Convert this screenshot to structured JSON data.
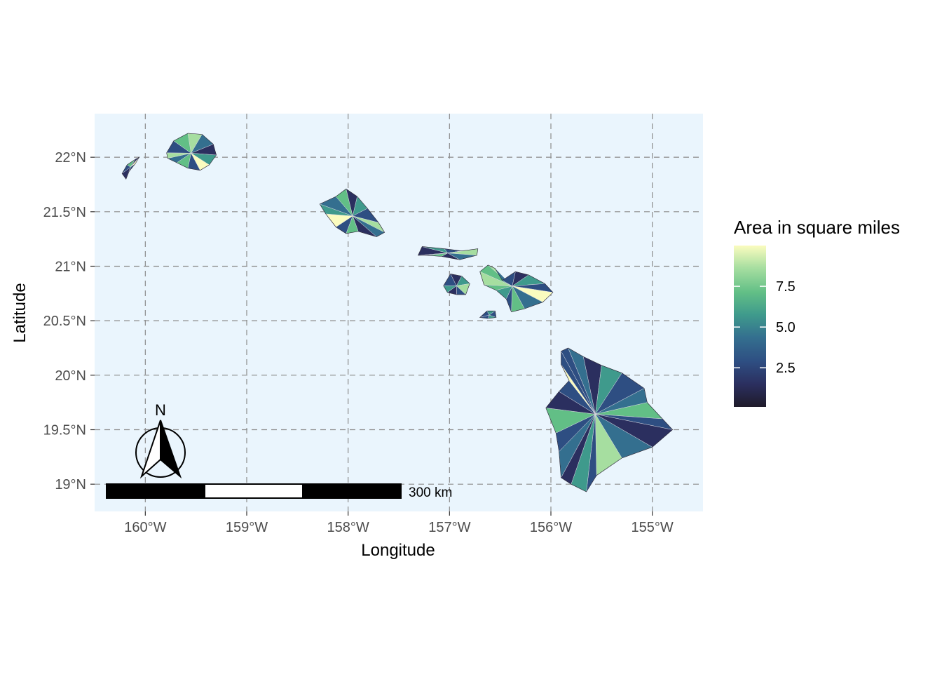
{
  "map": {
    "xlabel": "Longitude",
    "ylabel": "Latitude",
    "xlim": [
      -160.5,
      -154.5
    ],
    "ylim": [
      18.75,
      22.4
    ],
    "x_ticks": [
      {
        "value": -160,
        "label": "160°W"
      },
      {
        "value": -159,
        "label": "159°W"
      },
      {
        "value": -158,
        "label": "158°W"
      },
      {
        "value": -157,
        "label": "157°W"
      },
      {
        "value": -156,
        "label": "156°W"
      },
      {
        "value": -155,
        "label": "155°W"
      }
    ],
    "y_ticks": [
      {
        "value": 22,
        "label": "22°N"
      },
      {
        "value": 21.5,
        "label": "21.5°N"
      },
      {
        "value": 21,
        "label": "21°N"
      },
      {
        "value": 20.5,
        "label": "20.5°N"
      },
      {
        "value": 20,
        "label": "20°N"
      },
      {
        "value": 19.5,
        "label": "19.5°N"
      },
      {
        "value": 19,
        "label": "19°N"
      }
    ],
    "grid": "dashed",
    "colors": {
      "panel": "#eaf5fd",
      "grid": "#8c8c8c",
      "palette": [
        "#1f1b2a",
        "#2b2f5f",
        "#2e4e82",
        "#346f8f",
        "#3f9a8c",
        "#62bf86",
        "#a6dea0",
        "#fbfcbf"
      ]
    }
  },
  "legend": {
    "title": "Area in square miles",
    "range": [
      0.1,
      10
    ],
    "ticks": [
      {
        "value": 7.5,
        "label": "7.5"
      },
      {
        "value": 5.0,
        "label": "5.0"
      },
      {
        "value": 2.5,
        "label": "2.5"
      }
    ]
  },
  "north_arrow": {
    "label": "N"
  },
  "scale_bar": {
    "label": "300 km"
  },
  "islands": [
    {
      "name": "niihau",
      "outline": [
        [
          -160.23,
          21.85
        ],
        [
          -160.18,
          21.93
        ],
        [
          -160.1,
          21.98
        ],
        [
          -160.06,
          22.0
        ],
        [
          -160.1,
          21.94
        ],
        [
          -160.16,
          21.87
        ],
        [
          -160.19,
          21.8
        ]
      ],
      "shades": [
        2,
        5,
        1,
        7
      ]
    },
    {
      "name": "kauai",
      "outline": [
        [
          -159.79,
          22.04
        ],
        [
          -159.72,
          22.15
        ],
        [
          -159.58,
          22.22
        ],
        [
          -159.44,
          22.21
        ],
        [
          -159.33,
          22.12
        ],
        [
          -159.3,
          22.02
        ],
        [
          -159.37,
          21.93
        ],
        [
          -159.46,
          21.88
        ],
        [
          -159.58,
          21.9
        ],
        [
          -159.69,
          21.95
        ],
        [
          -159.78,
          21.99
        ]
      ],
      "shades": [
        2,
        5,
        6,
        3,
        1,
        4,
        7,
        2,
        5,
        3,
        6,
        1
      ]
    },
    {
      "name": "oahu",
      "outline": [
        [
          -158.28,
          21.57
        ],
        [
          -158.12,
          21.64
        ],
        [
          -158.02,
          21.71
        ],
        [
          -157.91,
          21.64
        ],
        [
          -157.81,
          21.53
        ],
        [
          -157.7,
          21.4
        ],
        [
          -157.64,
          21.31
        ],
        [
          -157.72,
          21.27
        ],
        [
          -157.9,
          21.32
        ],
        [
          -158.02,
          21.3
        ],
        [
          -158.12,
          21.36
        ],
        [
          -158.22,
          21.48
        ]
      ],
      "shades": [
        3,
        5,
        1,
        4,
        2,
        6,
        3,
        1,
        5,
        2,
        7,
        4
      ]
    },
    {
      "name": "molokai",
      "outline": [
        [
          -157.31,
          21.1
        ],
        [
          -157.27,
          21.18
        ],
        [
          -157.05,
          21.16
        ],
        [
          -156.88,
          21.14
        ],
        [
          -156.72,
          21.16
        ],
        [
          -156.73,
          21.1
        ],
        [
          -156.9,
          21.06
        ],
        [
          -157.08,
          21.09
        ],
        [
          -157.22,
          21.1
        ]
      ],
      "shades": [
        1,
        4,
        2,
        5,
        6,
        3,
        1,
        5
      ]
    },
    {
      "name": "lanai",
      "outline": [
        [
          -157.06,
          20.82
        ],
        [
          -156.99,
          20.93
        ],
        [
          -156.88,
          20.91
        ],
        [
          -156.8,
          20.84
        ],
        [
          -156.84,
          20.74
        ],
        [
          -156.93,
          20.74
        ],
        [
          -157.02,
          20.76
        ]
      ],
      "shades": [
        2,
        1,
        4,
        6
      ]
    },
    {
      "name": "kahoolawe",
      "outline": [
        [
          -156.7,
          20.53
        ],
        [
          -156.63,
          20.59
        ],
        [
          -156.55,
          20.59
        ],
        [
          -156.54,
          20.53
        ],
        [
          -156.62,
          20.52
        ]
      ],
      "shades": [
        2,
        4
      ]
    },
    {
      "name": "maui",
      "outline": [
        [
          -156.7,
          20.95
        ],
        [
          -156.62,
          21.01
        ],
        [
          -156.55,
          20.98
        ],
        [
          -156.48,
          20.87
        ],
        [
          -156.35,
          20.95
        ],
        [
          -156.22,
          20.92
        ],
        [
          -156.06,
          20.84
        ],
        [
          -155.98,
          20.76
        ],
        [
          -156.08,
          20.67
        ],
        [
          -156.26,
          20.61
        ],
        [
          -156.39,
          20.58
        ],
        [
          -156.44,
          20.7
        ],
        [
          -156.54,
          20.78
        ],
        [
          -156.66,
          20.83
        ]
      ],
      "shades": [
        5,
        6,
        3,
        2,
        1,
        4,
        2,
        7,
        3,
        5,
        2,
        4
      ]
    },
    {
      "name": "hawaii",
      "outline": [
        [
          -155.9,
          20.22
        ],
        [
          -155.83,
          20.25
        ],
        [
          -155.68,
          20.17
        ],
        [
          -155.5,
          20.09
        ],
        [
          -155.3,
          20.02
        ],
        [
          -155.08,
          19.88
        ],
        [
          -155.05,
          19.75
        ],
        [
          -154.9,
          19.6
        ],
        [
          -154.8,
          19.5
        ],
        [
          -155.0,
          19.34
        ],
        [
          -155.3,
          19.24
        ],
        [
          -155.55,
          19.08
        ],
        [
          -155.65,
          18.93
        ],
        [
          -155.8,
          19.0
        ],
        [
          -155.9,
          19.06
        ],
        [
          -155.92,
          19.3
        ],
        [
          -155.95,
          19.47
        ],
        [
          -156.05,
          19.7
        ],
        [
          -155.92,
          19.85
        ],
        [
          -155.82,
          19.95
        ],
        [
          -155.9,
          20.1
        ]
      ],
      "shades": [
        2,
        3,
        1,
        4,
        2,
        3,
        5,
        2,
        1,
        3,
        6,
        2,
        4,
        1,
        3,
        2,
        5,
        1,
        2,
        7
      ]
    }
  ]
}
